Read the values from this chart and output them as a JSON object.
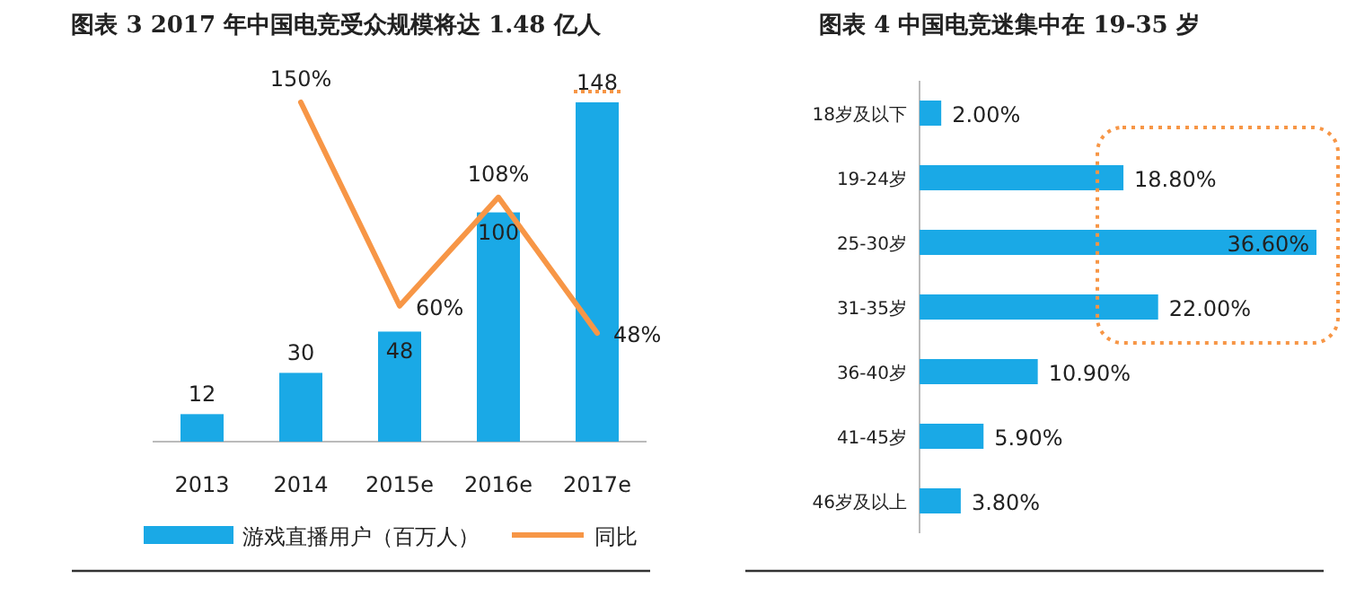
{
  "chart_data": [
    {
      "type": "bar",
      "title": "图表 3 2017 年中国电竞受众规模将达 1.48 亿人",
      "categories": [
        "2013",
        "2014",
        "2015e",
        "2016e",
        "2017e"
      ],
      "data_labels": true,
      "legend": "bottom",
      "series": [
        {
          "name": "游戏直播用户（百万人）",
          "color": "#1aa9e6",
          "values": [
            12,
            30,
            48,
            100,
            148
          ]
        },
        {
          "name": "同比",
          "type": "line",
          "axis": "y2",
          "color": "#f79646",
          "values": [
            null,
            150,
            60,
            108,
            48
          ],
          "value_labels": [
            null,
            "150%",
            "60%",
            "108%",
            "48%"
          ]
        }
      ]
    },
    {
      "type": "bar",
      "orientation": "horizontal",
      "title": "图表 4 中国电竞迷集中在 19-35 岁",
      "categories": [
        "18岁及以下",
        "19-24岁",
        "25-30岁",
        "31-35岁",
        "36-40岁",
        "41-45岁",
        "46岁及以上"
      ],
      "color": "#1aa9e6",
      "values": [
        2.0,
        18.8,
        36.6,
        22.0,
        10.9,
        5.9,
        3.8
      ],
      "value_labels": [
        "2.00%",
        "18.80%",
        "36.60%",
        "22.00%",
        "10.90%",
        "5.90%",
        "3.80%"
      ]
    }
  ]
}
